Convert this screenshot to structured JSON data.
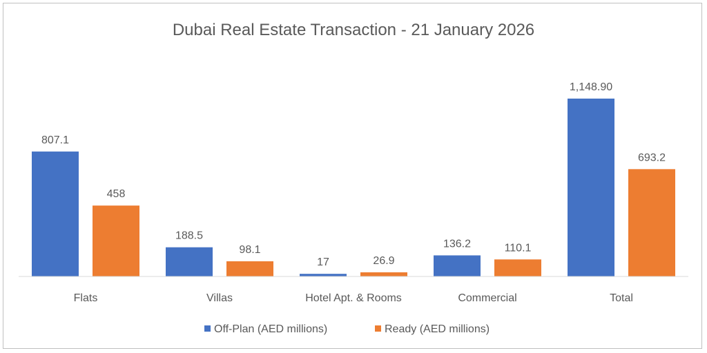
{
  "chart_data": {
    "type": "bar",
    "title": "Dubai Real Estate Transaction - 21 January 2026",
    "xlabel": "",
    "ylabel": "",
    "categories": [
      "Flats",
      "Villas",
      "Hotel Apt. & Rooms",
      "Commercial",
      "Total"
    ],
    "series": [
      {
        "name": "Off-Plan (AED millions)",
        "color": "#4472C4",
        "values": [
          807.1,
          188.5,
          17,
          136.2,
          1148.9
        ],
        "labels": [
          "807.1",
          "188.5",
          "17",
          "136.2",
          "1,148.90"
        ]
      },
      {
        "name": "Ready (AED millions)",
        "color": "#ED7D31",
        "values": [
          458,
          98.1,
          26.9,
          110.1,
          693.2
        ],
        "labels": [
          "458",
          "98.1",
          "26.9",
          "110.1",
          "693.2"
        ]
      }
    ],
    "ylim": [
      0,
      1148.9
    ],
    "grid": false,
    "legend": "bottom"
  }
}
